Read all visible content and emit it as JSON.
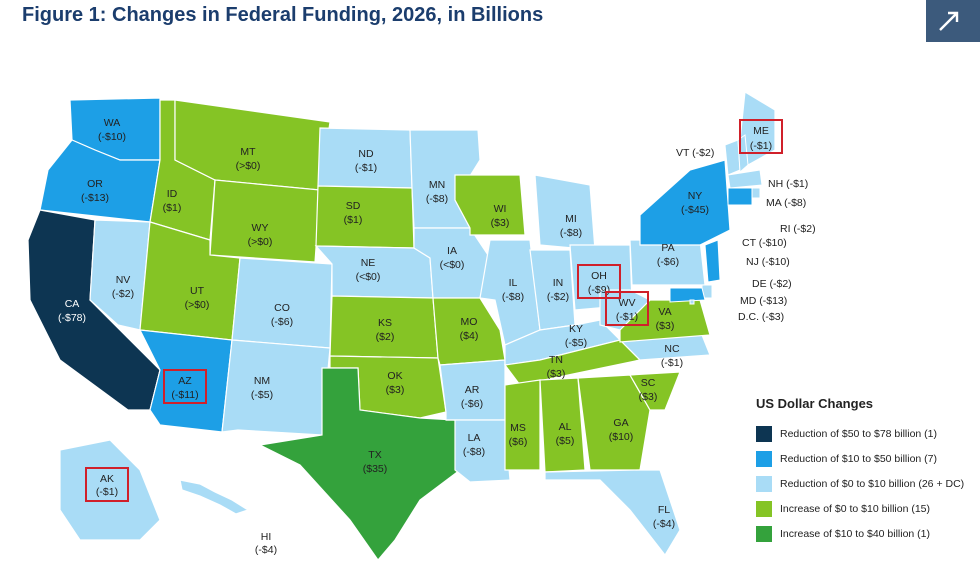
{
  "title": "Figure 1: Changes in Federal Funding, 2026, in Billions",
  "colors": {
    "cat1": "#0d3552",
    "cat2": "#1d9fe6",
    "cat3": "#a9dcf6",
    "cat4": "#85c425",
    "cat5": "#34a23c",
    "highlight": "#d0202a"
  },
  "legend": {
    "title": "US Dollar Changes",
    "items": [
      {
        "label": "Reduction of $50 to $78 billion (1)",
        "color": "#0d3552"
      },
      {
        "label": "Reduction of $10 to $50 billion (7)",
        "color": "#1d9fe6"
      },
      {
        "label": "Reduction of $0 to $10 billion (26 + DC)",
        "color": "#a9dcf6"
      },
      {
        "label": "Increase of $0 to $10 billion (15)",
        "color": "#85c425"
      },
      {
        "label": "Increase of $10 to $40 billion (1)",
        "color": "#34a23c"
      }
    ]
  },
  "states": [
    {
      "abbr": "WA",
      "value": "(-$10)",
      "cat": 2
    },
    {
      "abbr": "OR",
      "value": "(-$13)",
      "cat": 2
    },
    {
      "abbr": "CA",
      "value": "(-$78)",
      "cat": 1
    },
    {
      "abbr": "NV",
      "value": "(-$2)",
      "cat": 3
    },
    {
      "abbr": "ID",
      "value": "($1)",
      "cat": 4
    },
    {
      "abbr": "MT",
      "value": "(>$0)",
      "cat": 4
    },
    {
      "abbr": "WY",
      "value": "(>$0)",
      "cat": 4
    },
    {
      "abbr": "UT",
      "value": "(>$0)",
      "cat": 4
    },
    {
      "abbr": "AZ",
      "value": "(-$11)",
      "cat": 2,
      "highlight": true
    },
    {
      "abbr": "CO",
      "value": "(-$6)",
      "cat": 3
    },
    {
      "abbr": "NM",
      "value": "(-$5)",
      "cat": 3
    },
    {
      "abbr": "ND",
      "value": "(-$1)",
      "cat": 3
    },
    {
      "abbr": "SD",
      "value": "($1)",
      "cat": 4
    },
    {
      "abbr": "NE",
      "value": "(<$0)",
      "cat": 3
    },
    {
      "abbr": "KS",
      "value": "($2)",
      "cat": 4
    },
    {
      "abbr": "OK",
      "value": "($3)",
      "cat": 4
    },
    {
      "abbr": "TX",
      "value": "($35)",
      "cat": 5
    },
    {
      "abbr": "MN",
      "value": "(-$8)",
      "cat": 3
    },
    {
      "abbr": "IA",
      "value": "(<$0)",
      "cat": 3
    },
    {
      "abbr": "MO",
      "value": "($4)",
      "cat": 4
    },
    {
      "abbr": "AR",
      "value": "(-$6)",
      "cat": 3
    },
    {
      "abbr": "LA",
      "value": "(-$8)",
      "cat": 3
    },
    {
      "abbr": "WI",
      "value": "($3)",
      "cat": 4
    },
    {
      "abbr": "IL",
      "value": "(-$8)",
      "cat": 3
    },
    {
      "abbr": "MI",
      "value": "(-$8)",
      "cat": 3
    },
    {
      "abbr": "IN",
      "value": "(-$2)",
      "cat": 3
    },
    {
      "abbr": "OH",
      "value": "(-$9)",
      "cat": 3,
      "highlight": true
    },
    {
      "abbr": "KY",
      "value": "(-$5)",
      "cat": 3
    },
    {
      "abbr": "TN",
      "value": "($3)",
      "cat": 4
    },
    {
      "abbr": "MS",
      "value": "($6)",
      "cat": 4
    },
    {
      "abbr": "AL",
      "value": "($5)",
      "cat": 4
    },
    {
      "abbr": "GA",
      "value": "($10)",
      "cat": 4
    },
    {
      "abbr": "FL",
      "value": "(-$4)",
      "cat": 3
    },
    {
      "abbr": "SC",
      "value": "($3)",
      "cat": 4
    },
    {
      "abbr": "NC",
      "value": "(-$1)",
      "cat": 3
    },
    {
      "abbr": "VA",
      "value": "($3)",
      "cat": 4
    },
    {
      "abbr": "WV",
      "value": "(-$1)",
      "cat": 3,
      "highlight": true
    },
    {
      "abbr": "PA",
      "value": "(-$6)",
      "cat": 3
    },
    {
      "abbr": "NY",
      "value": "(-$45)",
      "cat": 2
    },
    {
      "abbr": "ME",
      "value": "(-$1)",
      "cat": 3,
      "highlight": true
    },
    {
      "abbr": "AK",
      "value": "(-$1)",
      "cat": 3,
      "highlight": true
    },
    {
      "abbr": "HI",
      "value": "(-$4)",
      "cat": 3
    },
    {
      "abbr": "VT",
      "value": "(-$2)",
      "cat": 3
    },
    {
      "abbr": "NH",
      "value": "(-$1)",
      "cat": 3
    },
    {
      "abbr": "MA",
      "value": "(-$8)",
      "cat": 3
    },
    {
      "abbr": "RI",
      "value": "(-$2)",
      "cat": 3
    },
    {
      "abbr": "CT",
      "value": "(-$10)",
      "cat": 2
    },
    {
      "abbr": "NJ",
      "value": "(-$10)",
      "cat": 2
    },
    {
      "abbr": "DE",
      "value": "(-$2)",
      "cat": 3
    },
    {
      "abbr": "MD",
      "value": "(-$13)",
      "cat": 2
    },
    {
      "abbr": "D.C.",
      "value": "(-$3)",
      "cat": 3
    }
  ]
}
